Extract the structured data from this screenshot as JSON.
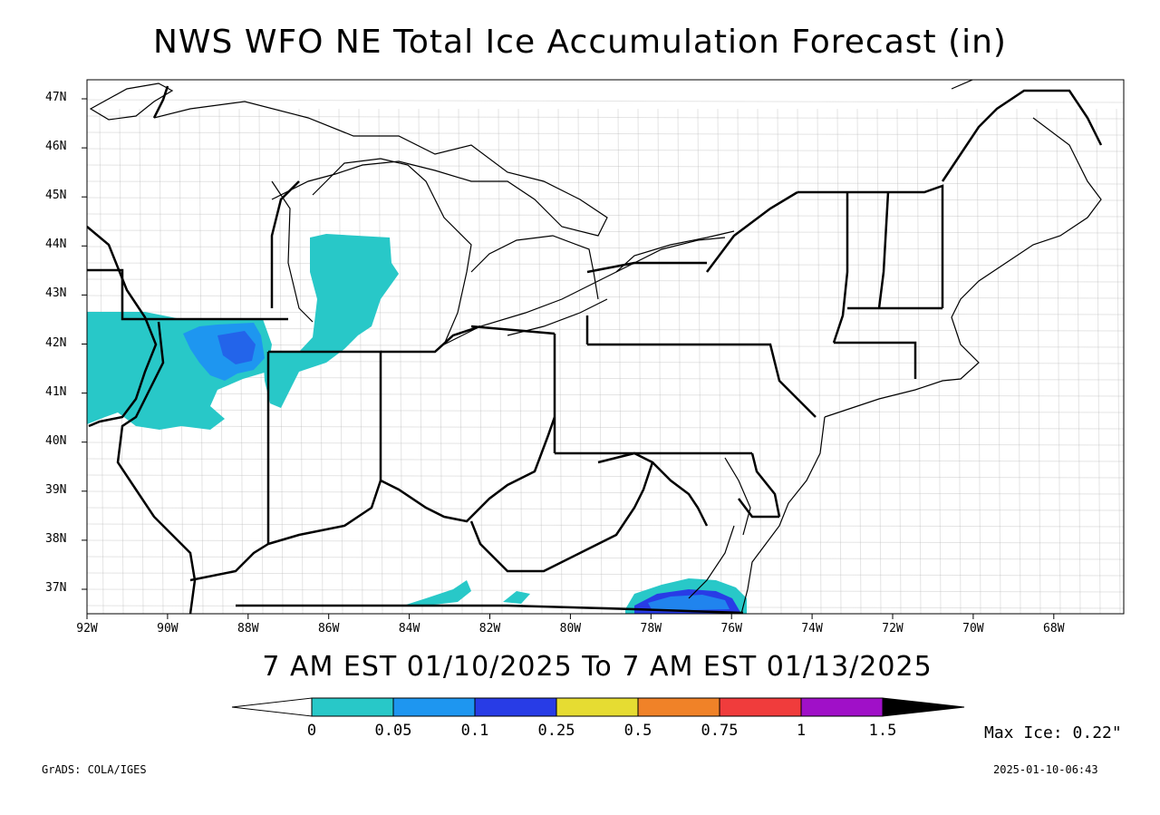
{
  "title": "NWS WFO NE Total Ice Accumulation Forecast (in)",
  "valid_period": "7 AM EST 01/10/2025 To 7 AM EST 01/13/2025",
  "lat_labels": [
    "47N",
    "46N",
    "45N",
    "44N",
    "43N",
    "42N",
    "41N",
    "40N",
    "39N",
    "38N",
    "37N"
  ],
  "lon_labels": [
    "92W",
    "90W",
    "88W",
    "86W",
    "84W",
    "82W",
    "80W",
    "78W",
    "76W",
    "74W",
    "72W",
    "70W",
    "68W"
  ],
  "colorbar": {
    "labels": [
      "0",
      "0.05",
      "0.1",
      "0.25",
      "0.5",
      "0.75",
      "1",
      "1.5"
    ],
    "colors": [
      "#28c8c8",
      "#1e96f0",
      "#283ce6",
      "#e6dc32",
      "#f08228",
      "#f03c3c",
      "#a010c8",
      "#000000"
    ]
  },
  "max_ice": "Max Ice: 0.22\"",
  "footer_left": "GrADS: COLA/IGES",
  "footer_right": "2025-01-10-06:43",
  "ice_colors": {
    "light": "#28c8c8",
    "medium": "#1e96f0",
    "heavy": "#283ce6"
  }
}
